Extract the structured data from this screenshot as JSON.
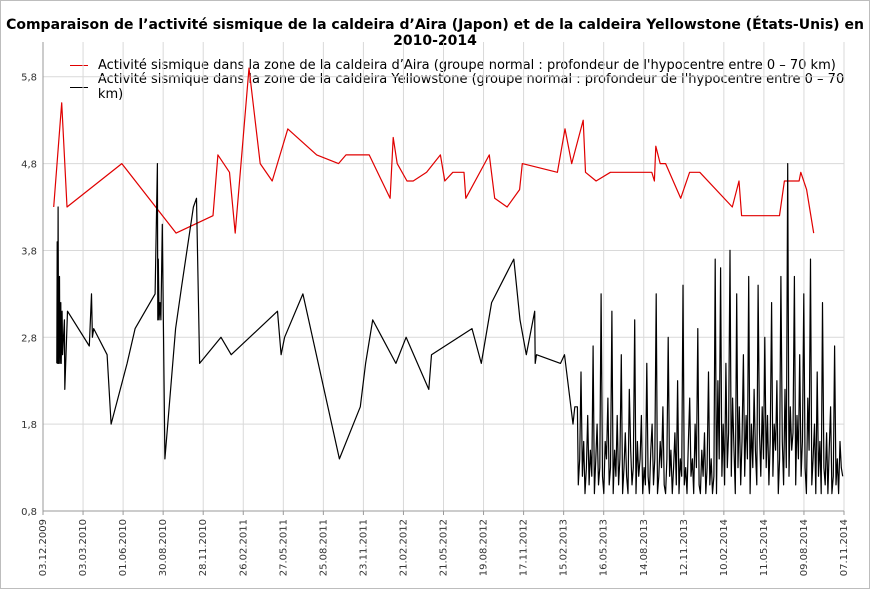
{
  "chart_data": {
    "type": "line",
    "title": "Comparaison de l’activité sismique de la caldeira d’Aira (Japon) et de la caldeira Yellowstone (États-Unis) en 2010-2014",
    "xlabel": "",
    "ylabel": "",
    "ylim": [
      0.8,
      6.2
    ],
    "yticks": [
      "0,8",
      "1,8",
      "2,8",
      "3,8",
      "4,8",
      "5,8"
    ],
    "ytick_values": [
      0.8,
      1.8,
      2.8,
      3.8,
      4.8,
      5.8
    ],
    "xlim": [
      "2009-12-03",
      "2014-11-07"
    ],
    "xticks": [
      "03.12.2009",
      "03.03.2010",
      "01.06.2010",
      "30.08.2010",
      "28.11.2010",
      "26.02.2011",
      "27.05.2011",
      "25.08.2011",
      "23.11.2011",
      "21.02.2012",
      "21.05.2012",
      "19.08.2012",
      "17.11.2012",
      "15.02.2013",
      "16.05.2013",
      "14.08.2013",
      "12.11.2013",
      "10.02.2014",
      "11.05.2014",
      "09.08.2014",
      "07.11.2014"
    ],
    "xtick_dates": [
      "2009-12-03",
      "2010-03-03",
      "2010-06-01",
      "2010-08-30",
      "2010-11-28",
      "2011-02-26",
      "2011-05-27",
      "2011-08-25",
      "2011-11-23",
      "2012-02-21",
      "2012-05-21",
      "2012-08-19",
      "2012-11-17",
      "2013-02-15",
      "2013-05-16",
      "2013-08-14",
      "2013-11-12",
      "2014-02-10",
      "2014-05-11",
      "2014-08-09",
      "2014-11-07"
    ],
    "grid": true,
    "legend_position": "top-left",
    "series": [
      {
        "name": "Activité sismique dans la zone de la caldeira d’Aira (groupe normal : profondeur de l'hypocentre entre 0 – 70 km)",
        "color": "#e00000",
        "points": [
          [
            "2009-12-27",
            4.3
          ],
          [
            "2010-01-14",
            5.5
          ],
          [
            "2010-01-26",
            4.3
          ],
          [
            "2010-05-29",
            4.8
          ],
          [
            "2010-09-28",
            4.0
          ],
          [
            "2010-12-20",
            4.2
          ],
          [
            "2010-12-31",
            4.9
          ],
          [
            "2011-01-26",
            4.7
          ],
          [
            "2011-02-08",
            4.0
          ],
          [
            "2011-03-11",
            5.9
          ],
          [
            "2011-04-05",
            4.8
          ],
          [
            "2011-05-02",
            4.6
          ],
          [
            "2011-06-06",
            5.2
          ],
          [
            "2011-08-10",
            4.9
          ],
          [
            "2011-09-28",
            4.8
          ],
          [
            "2011-10-15",
            4.9
          ],
          [
            "2011-12-06",
            4.9
          ],
          [
            "2012-01-22",
            4.4
          ],
          [
            "2012-01-29",
            5.1
          ],
          [
            "2012-02-07",
            4.8
          ],
          [
            "2012-02-29",
            4.6
          ],
          [
            "2012-03-14",
            4.6
          ],
          [
            "2012-04-13",
            4.7
          ],
          [
            "2012-05-14",
            4.9
          ],
          [
            "2012-05-24",
            4.6
          ],
          [
            "2012-06-11",
            4.7
          ],
          [
            "2012-07-06",
            4.7
          ],
          [
            "2012-07-10",
            4.4
          ],
          [
            "2012-09-01",
            4.9
          ],
          [
            "2012-09-13",
            4.4
          ],
          [
            "2012-10-11",
            4.3
          ],
          [
            "2012-11-08",
            4.5
          ],
          [
            "2012-11-14",
            4.8
          ],
          [
            "2013-02-01",
            4.7
          ],
          [
            "2013-02-18",
            5.2
          ],
          [
            "2013-03-05",
            4.8
          ],
          [
            "2013-03-31",
            5.3
          ],
          [
            "2013-04-05",
            4.7
          ],
          [
            "2013-04-29",
            4.6
          ],
          [
            "2013-05-31",
            4.7
          ],
          [
            "2013-08-10",
            4.7
          ],
          [
            "2013-09-01",
            4.7
          ],
          [
            "2013-09-07",
            4.6
          ],
          [
            "2013-09-10",
            5.0
          ],
          [
            "2013-09-20",
            4.8
          ],
          [
            "2013-10-02",
            4.8
          ],
          [
            "2013-11-05",
            4.4
          ],
          [
            "2013-11-25",
            4.7
          ],
          [
            "2013-12-18",
            4.7
          ],
          [
            "2014-03-01",
            4.3
          ],
          [
            "2014-03-16",
            4.6
          ],
          [
            "2014-03-22",
            4.2
          ],
          [
            "2014-06-15",
            4.2
          ],
          [
            "2014-06-26",
            4.6
          ],
          [
            "2014-07-29",
            4.6
          ],
          [
            "2014-08-02",
            4.7
          ],
          [
            "2014-08-15",
            4.5
          ],
          [
            "2014-08-31",
            4.0
          ]
        ]
      },
      {
        "name": "Activité sismique dans la zone de la caldeira Yellowstone (groupe normal : profondeur de l'hypocentre entre 0 – 70 km)",
        "color": "#000000",
        "points": [
          [
            "2010-01-03",
            2.5
          ],
          [
            "2010-01-04",
            3.9
          ],
          [
            "2010-01-05",
            2.5
          ],
          [
            "2010-01-06",
            4.3
          ],
          [
            "2010-01-07",
            2.5
          ],
          [
            "2010-01-09",
            3.5
          ],
          [
            "2010-01-10",
            2.5
          ],
          [
            "2010-01-12",
            3.2
          ],
          [
            "2010-01-13",
            2.5
          ],
          [
            "2010-01-15",
            3.1
          ],
          [
            "2010-01-16",
            2.6
          ],
          [
            "2010-01-20",
            3.0
          ],
          [
            "2010-01-21",
            2.2
          ],
          [
            "2010-01-27",
            3.1
          ],
          [
            "2010-03-17",
            2.7
          ],
          [
            "2010-03-22",
            3.3
          ],
          [
            "2010-03-24",
            2.8
          ],
          [
            "2010-03-27",
            2.9
          ],
          [
            "2010-04-26",
            2.6
          ],
          [
            "2010-05-05",
            1.8
          ],
          [
            "2010-06-10",
            2.5
          ],
          [
            "2010-06-28",
            2.9
          ],
          [
            "2010-08-12",
            3.3
          ],
          [
            "2010-08-17",
            4.8
          ],
          [
            "2010-08-18",
            3.0
          ],
          [
            "2010-08-19",
            3.7
          ],
          [
            "2010-08-21",
            3.0
          ],
          [
            "2010-08-23",
            3.2
          ],
          [
            "2010-08-25",
            3.0
          ],
          [
            "2010-08-28",
            4.1
          ],
          [
            "2010-09-03",
            1.4
          ],
          [
            "2010-09-27",
            2.9
          ],
          [
            "2010-10-11",
            3.4
          ],
          [
            "2010-11-06",
            4.3
          ],
          [
            "2010-11-13",
            4.4
          ],
          [
            "2010-11-20",
            2.5
          ],
          [
            "2011-01-07",
            2.8
          ],
          [
            "2011-01-30",
            2.6
          ],
          [
            "2011-05-14",
            3.1
          ],
          [
            "2011-05-22",
            2.6
          ],
          [
            "2011-05-30",
            2.8
          ],
          [
            "2011-07-10",
            3.3
          ],
          [
            "2011-09-30",
            1.4
          ],
          [
            "2011-11-16",
            2.0
          ],
          [
            "2011-11-28",
            2.5
          ],
          [
            "2011-12-14",
            3.0
          ],
          [
            "2012-02-04",
            2.5
          ],
          [
            "2012-02-27",
            2.8
          ],
          [
            "2012-04-18",
            2.2
          ],
          [
            "2012-04-24",
            2.6
          ],
          [
            "2012-07-24",
            2.9
          ],
          [
            "2012-08-14",
            2.5
          ],
          [
            "2012-09-06",
            3.2
          ],
          [
            "2012-10-26",
            3.7
          ],
          [
            "2012-11-09",
            3.0
          ],
          [
            "2012-11-23",
            2.6
          ],
          [
            "2012-12-12",
            3.1
          ],
          [
            "2012-12-13",
            2.5
          ],
          [
            "2012-12-16",
            2.6
          ],
          [
            "2013-02-08",
            2.5
          ],
          [
            "2013-02-17",
            2.6
          ],
          [
            "2013-03-08",
            1.8
          ],
          [
            "2013-03-12",
            2.0
          ],
          [
            "2013-03-18",
            2.0
          ]
        ],
        "dense": {
          "start": "2013-03-20",
          "values": [
            1.1,
            1.4,
            2.4,
            1.2,
            1.6,
            1.0,
            1.3,
            1.9,
            1.1,
            1.5,
            1.2,
            2.7,
            1.0,
            1.4,
            1.8,
            1.1,
            1.3,
            3.3,
            1.2,
            1.0,
            1.6,
            1.4,
            2.1,
            1.1,
            1.3,
            3.1,
            1.0,
            1.5,
            1.2,
            1.9,
            1.1,
            1.4,
            2.6,
            1.0,
            1.3,
            1.7,
            1.2,
            1.0,
            2.2,
            1.5,
            1.1,
            1.3,
            3.0,
            1.0,
            1.6,
            1.2,
            1.4,
            1.9,
            1.0,
            1.3,
            1.1,
            2.5,
            1.2,
            1.0,
            1.5,
            1.8,
            1.1,
            1.4,
            3.3,
            1.0,
            1.2,
            1.6,
            1.3,
            2.0,
            1.1,
            1.0,
            1.4,
            2.8,
            1.2,
            1.5,
            1.0,
            1.3,
            1.7,
            1.1,
            2.3,
            1.0,
            1.4,
            1.2,
            3.4,
            1.1,
            1.3,
            1.0,
            1.6,
            2.1,
            1.2,
            1.4,
            1.0,
            1.8,
            1.3,
            2.9,
            1.1,
            1.0,
            1.5,
            1.2,
            1.7,
            1.0,
            1.3,
            2.4,
            1.1,
            1.4,
            1.0,
            1.2,
            3.7,
            1.0,
            2.3,
            1.4,
            3.6,
            1.2,
            1.8,
            1.1,
            2.5,
            1.3,
            1.7,
            3.8,
            1.2,
            2.1,
            1.5,
            1.0,
            3.3,
            1.3,
            2.0,
            1.1,
            1.6,
            2.6,
            1.2,
            1.9,
            1.4,
            3.5,
            1.0,
            1.8,
            1.3,
            2.2,
            1.5,
            1.1,
            3.4,
            1.7,
            1.2,
            2.0,
            1.4,
            2.8,
            1.3,
            1.9,
            1.1,
            1.6,
            3.2,
            1.2,
            1.8,
            1.5,
            2.3,
            1.0,
            1.4,
            3.5,
            1.6,
            1.1,
            2.2,
            1.3,
            4.8,
            1.2,
            2.0,
            1.5,
            1.7,
            3.5,
            1.1,
            1.9,
            1.4,
            2.6,
            1.2,
            1.6,
            3.3,
            1.3,
            1.0,
            2.1,
            1.5,
            3.7,
            1.1,
            1.4,
            1.8,
            1.0,
            2.4,
            1.2,
            1.6,
            1.0,
            3.2,
            1.3,
            1.1,
            1.7,
            1.0,
            1.5,
            2.0,
            1.0,
            1.2,
            2.7,
            1.1,
            1.4,
            1.0,
            1.6,
            1.3,
            1.2
          ]
        }
      }
    ]
  }
}
